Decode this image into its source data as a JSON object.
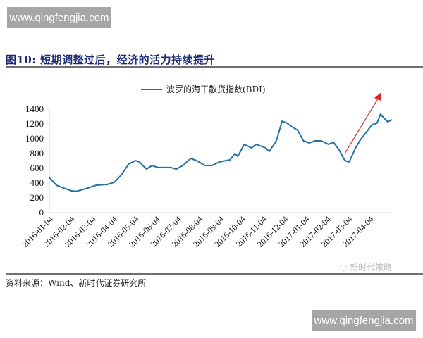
{
  "watermark": {
    "text": "www.qingfengjia.com"
  },
  "figure": {
    "title": "图10:  短期调整过后，经济的活力持续提升",
    "source": "资料来源：Wind、新时代证券研究所",
    "wechat_mark": "新时代策略"
  },
  "legend": {
    "label": "波罗的海干散货指数(BDI)",
    "color": "#2471a3"
  },
  "colors": {
    "line": "#2471a3",
    "arrow": "#d9262a",
    "title": "#1b2b78"
  },
  "chart_data": {
    "type": "line",
    "title": "",
    "xlabel": "",
    "ylabel": "",
    "ylim": [
      0,
      1400
    ],
    "yticks": [
      0,
      200,
      400,
      600,
      800,
      1000,
      1200,
      1400
    ],
    "x_tick_labels": [
      "2016-01-04",
      "2016-02-04",
      "2016-03-04",
      "2016-04-04",
      "2016-05-04",
      "2016-06-04",
      "2016-07-04",
      "2016-08-04",
      "2016-09-04",
      "2016-10-04",
      "2016-11-04",
      "2016-12-04",
      "2017-01-04",
      "2017-02-04",
      "2017-03-04",
      "2017-04-04"
    ],
    "grid": false,
    "legend_position": "top",
    "series": [
      {
        "name": "波罗的海干散货指数(BDI)",
        "x": [
          "2016-01-04",
          "2016-01-14",
          "2016-01-24",
          "2016-02-04",
          "2016-02-11",
          "2016-02-24",
          "2016-03-10",
          "2016-03-25",
          "2016-04-04",
          "2016-04-14",
          "2016-04-24",
          "2016-05-04",
          "2016-05-09",
          "2016-05-19",
          "2016-05-27",
          "2016-06-04",
          "2016-06-22",
          "2016-06-30",
          "2016-07-09",
          "2016-07-20",
          "2016-07-28",
          "2016-08-09",
          "2016-08-19",
          "2016-08-29",
          "2016-09-13",
          "2016-09-20",
          "2016-09-24",
          "2016-10-03",
          "2016-10-13",
          "2016-10-20",
          "2016-11-02",
          "2016-11-07",
          "2016-11-17",
          "2016-11-25",
          "2016-12-02",
          "2016-12-09",
          "2016-12-17",
          "2016-12-25",
          "2017-01-02",
          "2017-01-10",
          "2017-01-19",
          "2017-01-29",
          "2017-02-05",
          "2017-02-13",
          "2017-02-21",
          "2017-02-27",
          "2017-03-08",
          "2017-03-15",
          "2017-03-23",
          "2017-03-31",
          "2017-04-07",
          "2017-04-12",
          "2017-04-17",
          "2017-04-22",
          "2017-04-28"
        ],
        "values": [
          476,
          370,
          333,
          295,
          290,
          324,
          371,
          381,
          410,
          514,
          657,
          705,
          686,
          590,
          638,
          610,
          610,
          590,
          638,
          733,
          705,
          638,
          638,
          686,
          714,
          800,
          762,
          924,
          876,
          924,
          876,
          829,
          971,
          1238,
          1210,
          1162,
          1114,
          971,
          943,
          971,
          971,
          924,
          952,
          848,
          705,
          686,
          876,
          990,
          1086,
          1190,
          1210,
          1333,
          1276,
          1229,
          1257
        ]
      }
    ],
    "annotations": [
      {
        "type": "arrow",
        "color": "#d9262a",
        "from": [
          "2017-02-04",
          800
        ],
        "to": [
          "2017-04-04",
          1650
        ],
        "meaning": "upward trend"
      }
    ]
  }
}
